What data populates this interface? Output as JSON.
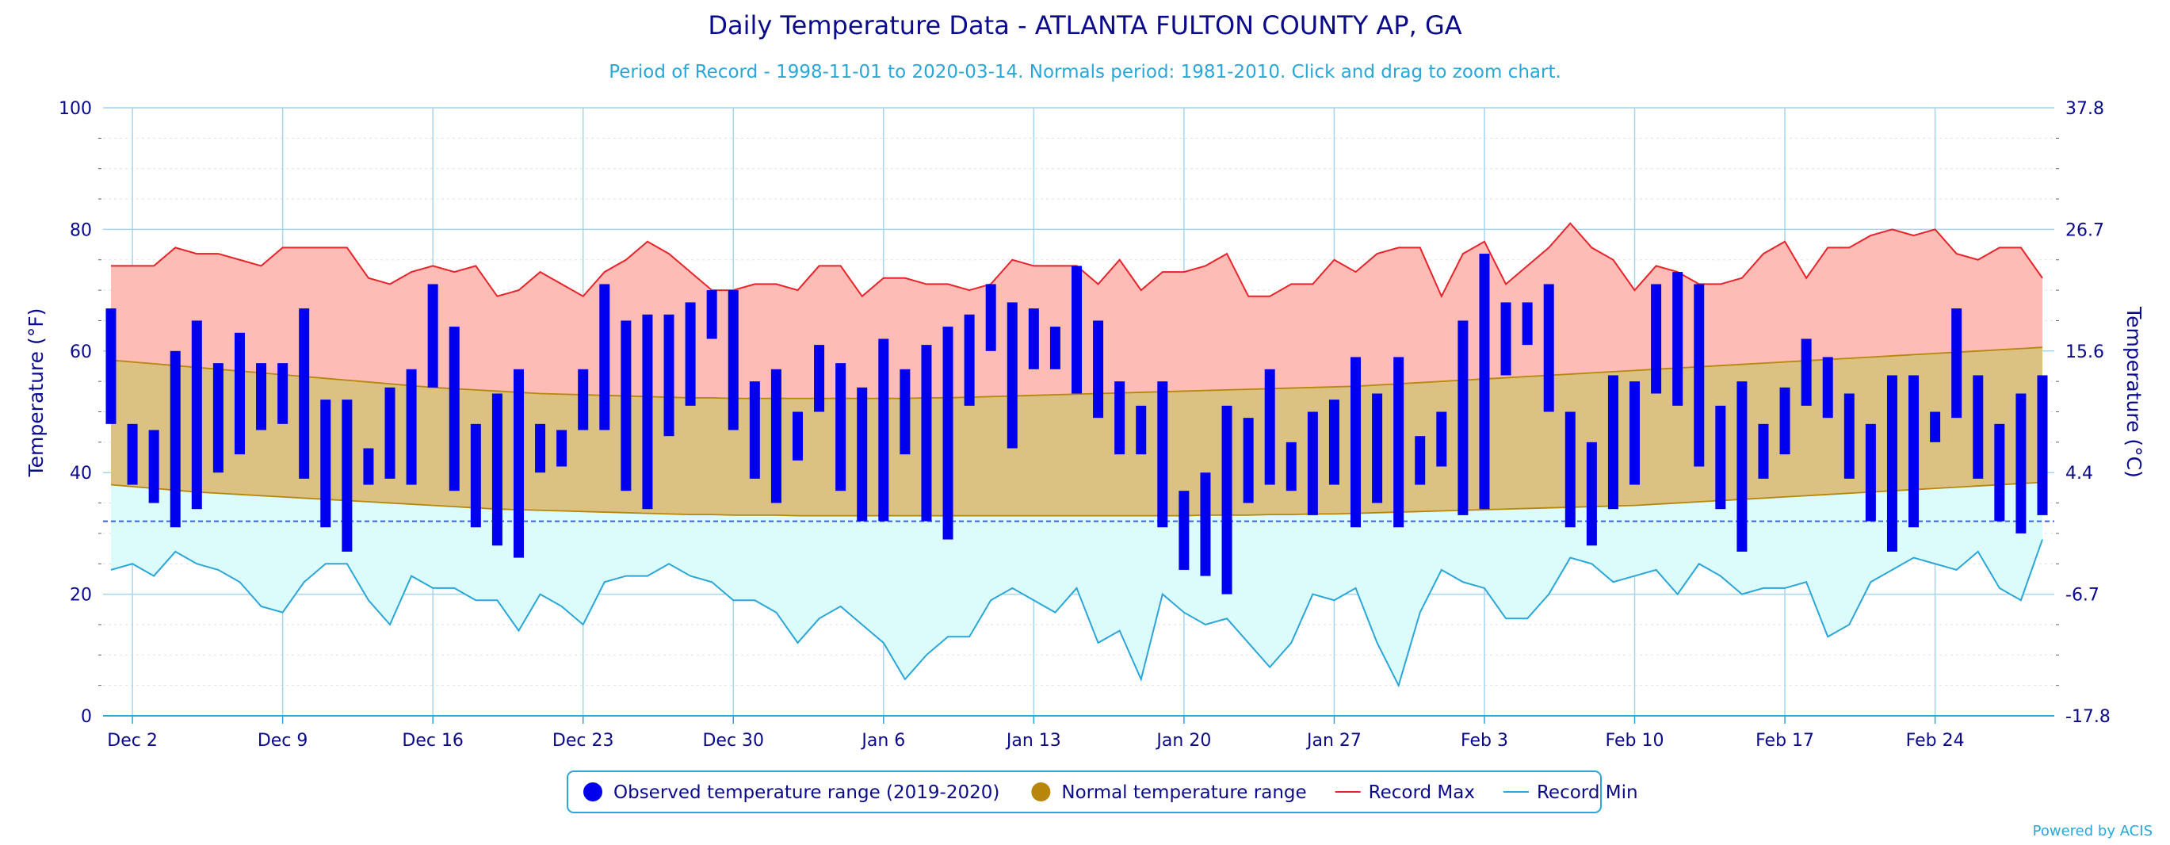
{
  "chart_data": {
    "type": "bar",
    "title": "Daily Temperature Data - ATLANTA FULTON COUNTY AP, GA",
    "subtitle": "Period of Record - 1998-11-01 to 2020-03-14. Normals period: 1981-2010. Click and drag to zoom chart.",
    "ylabel": "Temperature (°F)",
    "ylabel_right": "Temperature (°C)",
    "ylim": [
      0,
      100
    ],
    "yticks": [
      0,
      20,
      40,
      60,
      80,
      100
    ],
    "yticks_right": [
      "-17.8",
      "-6.7",
      "4.4",
      "15.6",
      "26.7",
      "37.8"
    ],
    "freezing_line": 32,
    "xlim": [
      0,
      90
    ],
    "xticks": [
      {
        "day": 1,
        "label": "Dec 2"
      },
      {
        "day": 8,
        "label": "Dec 9"
      },
      {
        "day": 15,
        "label": "Dec 16"
      },
      {
        "day": 22,
        "label": "Dec 23"
      },
      {
        "day": 29,
        "label": "Dec 30"
      },
      {
        "day": 36,
        "label": "Jan 6"
      },
      {
        "day": 43,
        "label": "Jan 13"
      },
      {
        "day": 50,
        "label": "Jan 20"
      },
      {
        "day": 57,
        "label": "Jan 27"
      },
      {
        "day": 64,
        "label": "Feb 3"
      },
      {
        "day": 71,
        "label": "Feb 10"
      },
      {
        "day": 78,
        "label": "Feb 17"
      },
      {
        "day": 85,
        "label": "Feb 24"
      }
    ],
    "grid": true,
    "legend_position": "bottom-center",
    "credit": "Powered by ACIS",
    "legend": [
      {
        "key": "observed",
        "label": "Observed temperature range (2019-2020)",
        "color": "#0000ee",
        "symbol": "dot"
      },
      {
        "key": "normal",
        "label": "Normal temperature range",
        "color": "#b8860b",
        "symbol": "dot"
      },
      {
        "key": "rmax",
        "label": "Record Max",
        "color": "#e8232a",
        "symbol": "line"
      },
      {
        "key": "rmin",
        "label": "Record Min",
        "color": "#2aa6d8",
        "symbol": "line"
      }
    ],
    "observed_low": [
      48,
      38,
      35,
      31,
      34,
      40,
      43,
      47,
      48,
      39,
      31,
      27,
      38,
      39,
      38,
      54,
      37,
      31,
      28,
      26,
      40,
      41,
      47,
      47,
      37,
      34,
      46,
      51,
      62,
      47,
      39,
      35,
      42,
      50,
      37,
      32,
      32,
      43,
      32,
      29,
      51,
      60,
      44,
      57,
      57,
      53,
      49,
      43,
      43,
      31,
      24,
      23,
      20,
      35,
      38,
      37,
      33,
      38,
      31,
      35,
      31,
      38,
      41,
      33,
      34,
      56,
      61,
      50,
      31,
      28,
      34,
      38,
      53,
      51,
      41,
      34,
      27,
      39,
      43,
      51,
      49,
      39,
      32,
      27,
      31,
      45,
      49,
      39,
      32,
      30,
      33
    ],
    "observed_high": [
      67,
      48,
      47,
      60,
      65,
      58,
      63,
      58,
      58,
      67,
      52,
      52,
      44,
      54,
      57,
      71,
      64,
      48,
      53,
      57,
      48,
      47,
      57,
      71,
      65,
      66,
      66,
      68,
      70,
      70,
      55,
      57,
      50,
      61,
      58,
      54,
      62,
      57,
      61,
      64,
      66,
      71,
      68,
      67,
      64,
      74,
      65,
      55,
      51,
      55,
      37,
      40,
      51,
      49,
      57,
      45,
      50,
      52,
      59,
      53,
      59,
      46,
      50,
      65,
      76,
      68,
      68,
      71,
      50,
      45,
      56,
      55,
      71,
      73,
      71,
      51,
      55,
      48,
      54,
      62,
      59,
      53,
      48,
      56,
      56,
      50,
      67,
      56,
      48,
      53,
      56
    ],
    "normal_high": [
      58.5,
      58.2,
      57.9,
      57.6,
      57.3,
      57.0,
      56.7,
      56.4,
      56.1,
      55.8,
      55.5,
      55.2,
      54.9,
      54.6,
      54.3,
      54.0,
      53.8,
      53.6,
      53.4,
      53.2,
      53.0,
      52.9,
      52.8,
      52.7,
      52.6,
      52.5,
      52.4,
      52.3,
      52.3,
      52.2,
      52.2,
      52.2,
      52.2,
      52.2,
      52.2,
      52.2,
      52.2,
      52.2,
      52.3,
      52.3,
      52.4,
      52.5,
      52.6,
      52.7,
      52.8,
      52.9,
      53.0,
      53.1,
      53.2,
      53.3,
      53.4,
      53.5,
      53.6,
      53.7,
      53.8,
      53.9,
      54.0,
      54.1,
      54.2,
      54.4,
      54.6,
      54.8,
      55.0,
      55.2,
      55.4,
      55.6,
      55.8,
      56.0,
      56.2,
      56.4,
      56.6,
      56.8,
      57.0,
      57.2,
      57.4,
      57.6,
      57.8,
      58.0,
      58.2,
      58.4,
      58.6,
      58.8,
      59.0,
      59.2,
      59.4,
      59.6,
      59.8,
      60.0,
      60.2,
      60.4,
      60.6
    ],
    "normal_low": [
      38.0,
      37.7,
      37.4,
      37.1,
      36.8,
      36.6,
      36.4,
      36.2,
      36.0,
      35.8,
      35.6,
      35.4,
      35.2,
      35.0,
      34.8,
      34.6,
      34.4,
      34.2,
      34.0,
      33.9,
      33.8,
      33.7,
      33.6,
      33.5,
      33.4,
      33.3,
      33.2,
      33.1,
      33.1,
      33.0,
      33.0,
      33.0,
      32.9,
      32.9,
      32.9,
      32.9,
      32.9,
      32.9,
      32.9,
      32.9,
      32.9,
      32.9,
      32.9,
      32.9,
      32.9,
      32.9,
      32.9,
      32.9,
      32.9,
      32.9,
      32.9,
      33.0,
      33.0,
      33.0,
      33.1,
      33.1,
      33.2,
      33.2,
      33.3,
      33.4,
      33.5,
      33.6,
      33.7,
      33.8,
      33.9,
      34.0,
      34.1,
      34.2,
      34.3,
      34.4,
      34.5,
      34.6,
      34.8,
      35.0,
      35.2,
      35.4,
      35.6,
      35.8,
      36.0,
      36.2,
      36.4,
      36.6,
      36.8,
      37.0,
      37.2,
      37.4,
      37.6,
      37.8,
      38.0,
      38.2,
      38.4
    ],
    "record_max": [
      74,
      74,
      74,
      77,
      76,
      76,
      75,
      74,
      77,
      77,
      77,
      77,
      72,
      71,
      73,
      74,
      73,
      74,
      69,
      70,
      73,
      71,
      69,
      73,
      75,
      78,
      76,
      73,
      70,
      70,
      71,
      71,
      70,
      74,
      74,
      69,
      72,
      72,
      71,
      71,
      70,
      71,
      75,
      74,
      74,
      74,
      71,
      75,
      70,
      73,
      73,
      74,
      76,
      69,
      69,
      71,
      71,
      75,
      73,
      76,
      77,
      77,
      69,
      76,
      78,
      71,
      74,
      77,
      81,
      77,
      75,
      70,
      74,
      73,
      71,
      71,
      72,
      76,
      78,
      72,
      77,
      77,
      79,
      80,
      79,
      80,
      76,
      75,
      77,
      77,
      72
    ],
    "record_min": [
      24,
      25,
      23,
      27,
      25,
      24,
      22,
      18,
      17,
      22,
      25,
      25,
      19,
      15,
      23,
      21,
      21,
      19,
      19,
      14,
      20,
      18,
      15,
      22,
      23,
      23,
      25,
      23,
      22,
      19,
      19,
      17,
      12,
      16,
      18,
      15,
      12,
      6,
      10,
      13,
      13,
      19,
      21,
      19,
      17,
      21,
      12,
      14,
      6,
      20,
      17,
      15,
      16,
      12,
      8,
      12,
      20,
      19,
      21,
      12,
      5,
      17,
      24,
      22,
      21,
      16,
      16,
      20,
      26,
      25,
      22,
      23,
      24,
      20,
      25,
      23,
      20,
      21,
      21,
      22,
      13,
      15,
      22,
      24,
      26,
      25,
      24,
      27,
      21,
      19,
      29
    ]
  }
}
